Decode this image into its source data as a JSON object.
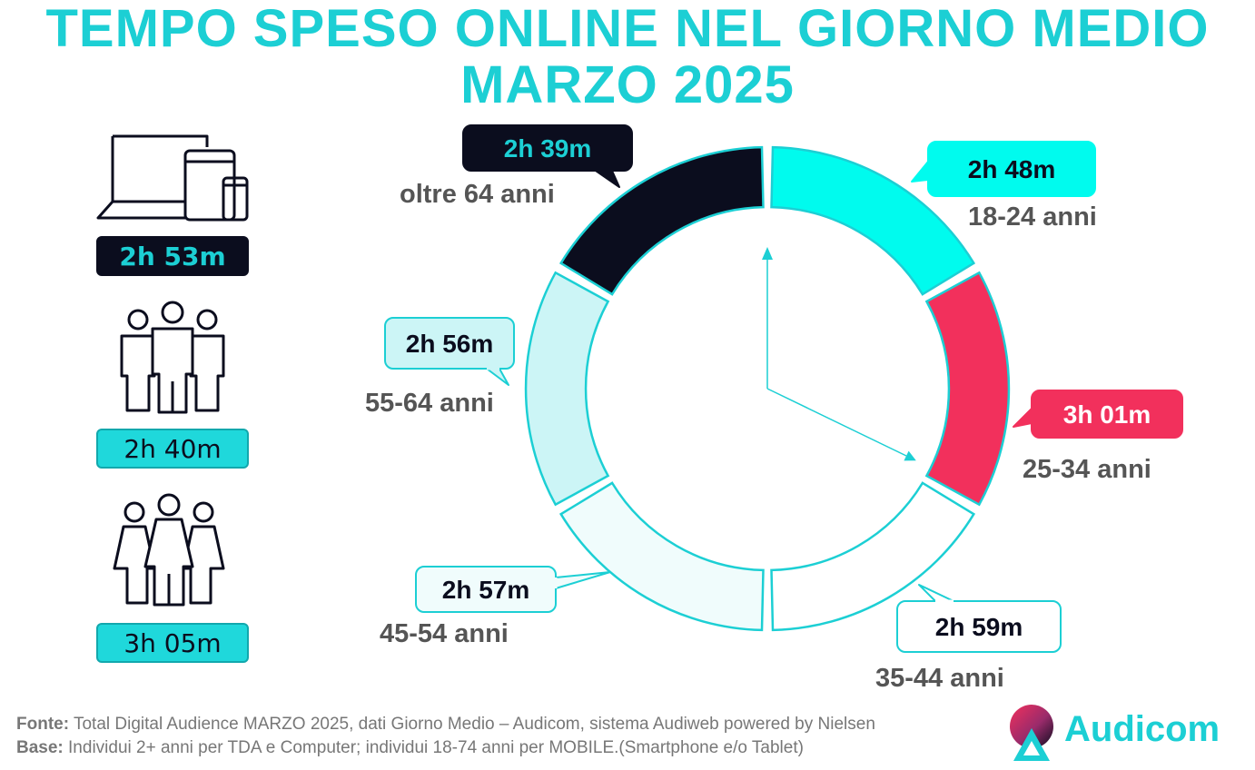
{
  "title_line1": "TEMPO SPESO ONLINE NEL GIORNO MEDIO",
  "title_line2": "MARZO 2025",
  "sidebar": {
    "total": {
      "icon": "devices-icon",
      "value": "2h 53m"
    },
    "male": {
      "icon": "men-group-icon",
      "value": "2h 40m"
    },
    "female": {
      "icon": "women-group-icon",
      "value": "3h 05m"
    }
  },
  "chart_data": {
    "type": "donut",
    "segments": [
      {
        "label": "18-24 anni",
        "value_label": "2h 48m",
        "minutes": 168,
        "fill": "#00fbee",
        "text": "#0b0d1e"
      },
      {
        "label": "25-34 anni",
        "value_label": "3h 01m",
        "minutes": 181,
        "fill": "#f2305c",
        "text": "#ffffff"
      },
      {
        "label": "35-44 anni",
        "value_label": "2h 59m",
        "minutes": 179,
        "fill": "#ffffff",
        "text": "#0b0d1e"
      },
      {
        "label": "45-54 anni",
        "value_label": "2h 57m",
        "minutes": 177,
        "fill": "#f0fcfc",
        "text": "#0b0d1e"
      },
      {
        "label": "55-64 anni",
        "value_label": "2h 56m",
        "minutes": 176,
        "fill": "#ccf5f6",
        "text": "#0b0d1e"
      },
      {
        "label": "oltre 64 anni",
        "value_label": "2h 39m",
        "minutes": 159,
        "fill": "#0b0d1e",
        "text": "#1ccfd4"
      }
    ]
  },
  "colors": {
    "accent": "#1ccfd4",
    "dark": "#0b0d1e",
    "highlight": "#f2305c"
  },
  "footer": {
    "fonte_label": "Fonte:",
    "fonte_text": " Total Digital Audience MARZO 2025, dati Giorno Medio – Audicom, sistema Audiweb powered by Nielsen",
    "base_label": "Base:",
    "base_text": "  Individui 2+ anni per TDA e Computer; individui 18-74 anni per MOBILE.(Smartphone e/o Tablet)"
  },
  "logo": {
    "text": "Audicom",
    "icon": "audicom-logo-icon"
  }
}
